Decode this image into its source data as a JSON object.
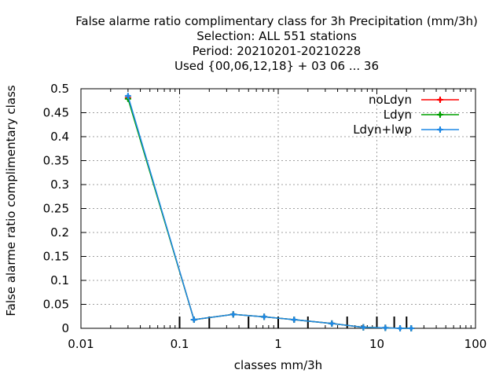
{
  "chart_data": {
    "type": "line",
    "title_lines": [
      "False alarme ratio complimentary class  for 3h Precipitation (mm/3h)",
      "Selection: ALL    551 stations",
      "Period: 20210201-20210228",
      "Used {00,06,12,18} + 03 06 ... 36"
    ],
    "xlabel": "classes mm/3h",
    "ylabel": "False alarme ratio complimentary class",
    "xscale": "log",
    "xlim": [
      0.01,
      100
    ],
    "ylim": [
      0,
      0.5
    ],
    "x_ticks": [
      "0.01",
      "0.1",
      "1",
      "10",
      "100"
    ],
    "x_tick_values": [
      0.01,
      0.1,
      1,
      10,
      100
    ],
    "y_ticks": [
      "0",
      "0.05",
      "0.1",
      "0.15",
      "0.2",
      "0.25",
      "0.3",
      "0.35",
      "0.4",
      "0.45",
      "0.5"
    ],
    "y_tick_values": [
      0,
      0.05,
      0.1,
      0.15,
      0.2,
      0.25,
      0.3,
      0.35,
      0.4,
      0.45,
      0.5
    ],
    "grid": true,
    "legend_position": "top-right",
    "class_thresholds": [
      0.1,
      0.2,
      0.5,
      1,
      2,
      5,
      10,
      15,
      20
    ],
    "series": [
      {
        "name": "noLdyn",
        "color": "#ff0000",
        "x": [
          0.03,
          0.14,
          0.35,
          0.72,
          1.45,
          3.5,
          7.3,
          12.2,
          17.2,
          22.3
        ],
        "y": [
          0.481,
          0.018,
          0.029,
          0.024,
          0.018,
          0.01,
          0.002,
          0.001,
          0.0,
          0.0
        ]
      },
      {
        "name": "Ldyn",
        "color": "#00a000",
        "x": [
          0.03,
          0.14,
          0.35,
          0.72,
          1.45,
          3.5,
          7.3,
          12.2,
          17.2,
          22.3
        ],
        "y": [
          0.479,
          0.018,
          0.029,
          0.024,
          0.018,
          0.01,
          0.002,
          0.001,
          0.0,
          0.0
        ]
      },
      {
        "name": "Ldyn+lwp",
        "color": "#1e88e5",
        "x": [
          0.03,
          0.14,
          0.35,
          0.72,
          1.45,
          3.5,
          7.3,
          12.2,
          17.2,
          22.3
        ],
        "y": [
          0.485,
          0.018,
          0.029,
          0.024,
          0.018,
          0.01,
          0.002,
          0.001,
          0.0,
          0.0
        ]
      }
    ]
  }
}
